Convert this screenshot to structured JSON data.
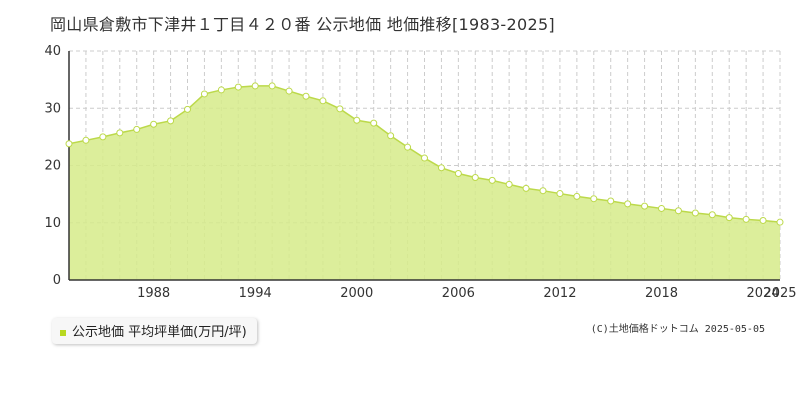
{
  "chart_data": {
    "type": "area",
    "title": "岡山県倉敷市下津井１丁目４２０番 公示地価 地価推移[1983-2025]",
    "x": [
      1983,
      1984,
      1985,
      1986,
      1987,
      1988,
      1989,
      1990,
      1991,
      1992,
      1993,
      1994,
      1995,
      1996,
      1997,
      1998,
      1999,
      2000,
      2001,
      2002,
      2003,
      2004,
      2005,
      2006,
      2007,
      2008,
      2009,
      2010,
      2011,
      2012,
      2013,
      2014,
      2015,
      2016,
      2017,
      2018,
      2019,
      2020,
      2021,
      2022,
      2023,
      2024,
      2025
    ],
    "series": [
      {
        "name": "公示地価 平均坪単価(万円/坪)",
        "values": [
          23.8,
          24.4,
          25.0,
          25.7,
          26.3,
          27.2,
          27.8,
          29.8,
          32.5,
          33.2,
          33.7,
          33.9,
          33.9,
          33.0,
          32.1,
          31.3,
          29.9,
          27.9,
          27.4,
          25.2,
          23.2,
          21.3,
          19.6,
          18.6,
          17.9,
          17.4,
          16.7,
          16.0,
          15.6,
          15.1,
          14.6,
          14.2,
          13.8,
          13.3,
          12.9,
          12.5,
          12.1,
          11.7,
          11.4,
          10.9,
          10.6,
          10.4,
          10.1
        ]
      }
    ],
    "x_tick_labels": [
      "1988",
      "1994",
      "2000",
      "2006",
      "2012",
      "2018",
      "2024",
      "2025"
    ],
    "x_tick_values": [
      1988,
      1994,
      2000,
      2006,
      2012,
      2018,
      2024,
      2025
    ],
    "y_ticks": [
      0,
      10,
      20,
      30,
      40
    ],
    "xlim": [
      1983,
      2025
    ],
    "ylim": [
      0,
      40
    ],
    "grid": true,
    "legend_position": "bottom-left",
    "colors": {
      "fill": "#d6eb8a",
      "line": "#bcd94a",
      "marker_fill": "#ffffff",
      "marker_stroke": "#bcd94a",
      "legend_swatch": "#b8d820",
      "grid": "#cccccc",
      "axis": "#333333"
    }
  },
  "credit": "(C)土地価格ドットコム 2025-05-05"
}
